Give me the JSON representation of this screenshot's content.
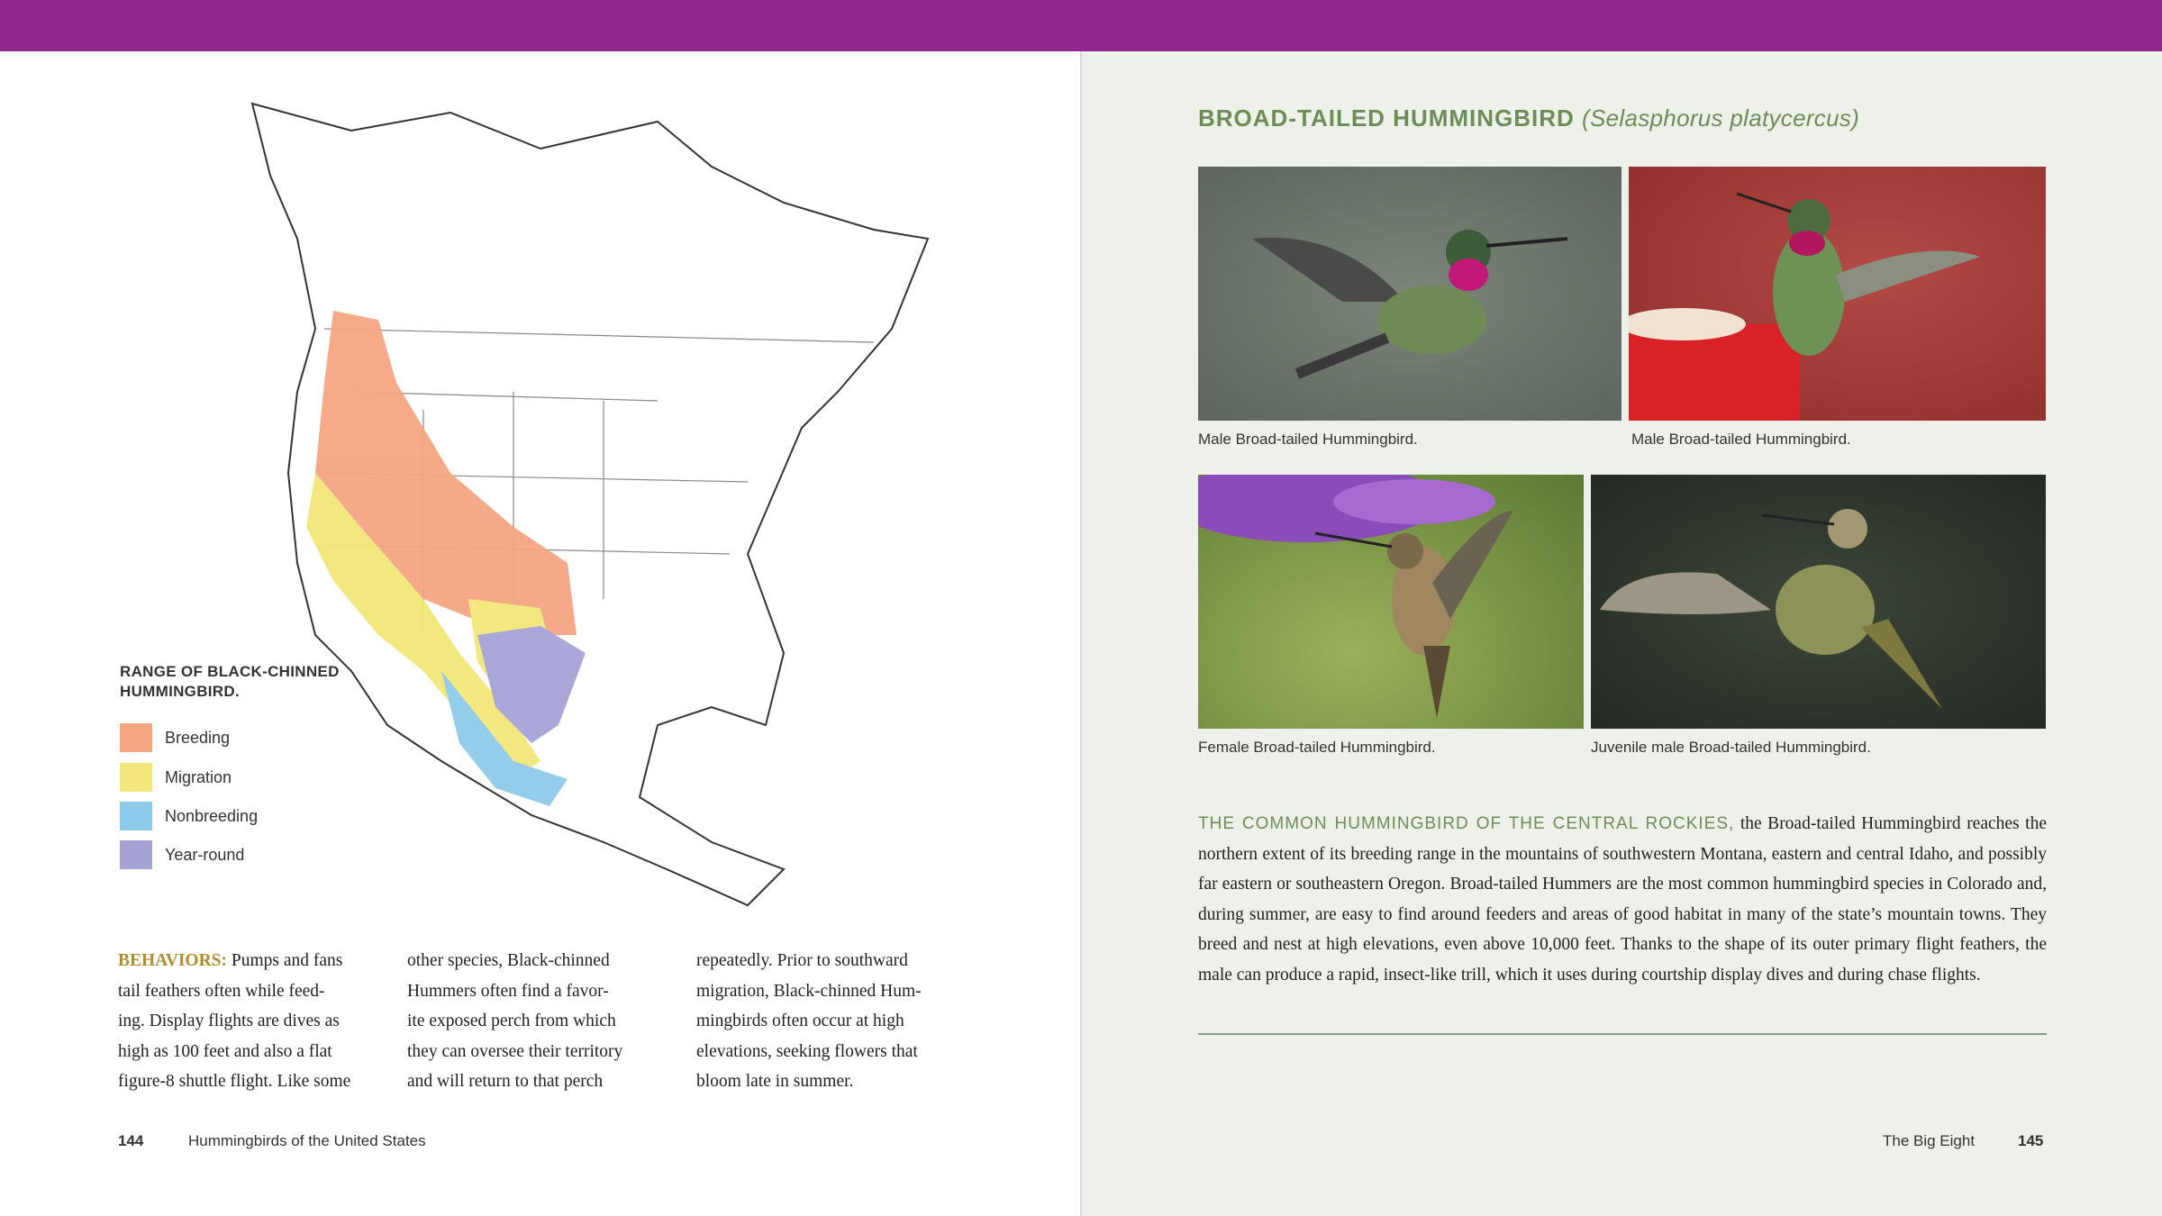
{
  "colors": {
    "top_bar": "#93278f",
    "right_page_bg": "#eef1ea",
    "heading_green": "#6d8c58",
    "behaviors_gold": "#b08d2c",
    "breeding": "#f4a582",
    "migration": "#f3e67a",
    "nonbreeding": "#8ecbea",
    "year_round": "#a5a3d6"
  },
  "left_page": {
    "legend": {
      "title_line1": "RANGE OF BLACK-CHINNED",
      "title_line2": "HUMMINGBIRD.",
      "items": [
        {
          "label": "Breeding",
          "color": "#f4a582"
        },
        {
          "label": "Migration",
          "color": "#f3e67a"
        },
        {
          "label": "Nonbreeding",
          "color": "#8ecbea"
        },
        {
          "label": "Year-round",
          "color": "#a5a3d6"
        }
      ]
    },
    "behaviors_label": "BEHAVIORS:",
    "columns": [
      " Pumps and fans\ntail feathers often while feed-\ning. Display flights are dives as\nhigh as 100 feet and also a flat\nfigure-8 shuttle flight. Like some",
      "other species, Black-chinned\nHummers often find a favor-\nite exposed perch from which\nthey can oversee their territory\nand will return to that perch",
      "repeatedly. Prior to southward\nmigration, Black-chinned Hum-\nmingbirds often occur at high\nelevations, seeking flowers that\nbloom late in summer."
    ],
    "page_number": "144",
    "running_title": "Hummingbirds of the United States"
  },
  "right_page": {
    "title": "BROAD-TAILED HUMMINGBIRD",
    "scientific_name": "(Selasphorus platycercus)",
    "photos": [
      {
        "caption": "Male Broad-tailed Hummingbird."
      },
      {
        "caption": "Male Broad-tailed Hummingbird."
      },
      {
        "caption": "Female Broad-tailed Hummingbird."
      },
      {
        "caption": "Juvenile male Broad-tailed Hummingbird."
      }
    ],
    "lead": "THE COMMON HUMMINGBIRD OF THE CENTRAL ROCKIES,",
    "body": " the Broad-tailed Hummingbird reaches the northern extent of its breeding range in the mountains of southwestern Montana, eastern and central Idaho, and possibly far eastern or southeastern Oregon. Broad-tailed Hummers are the most common hummingbird species in Colorado and, during summer, are easy to find around feeders and areas of good habitat in many of the state’s mountain towns. They breed and nest at high elevations, even above 10,000 feet. Thanks to the shape of its outer primary flight feathers, the male can produce a rapid, insect-like trill, which it uses during courtship display dives and during chase flights.",
    "running_title": "The Big Eight",
    "page_number": "145"
  }
}
